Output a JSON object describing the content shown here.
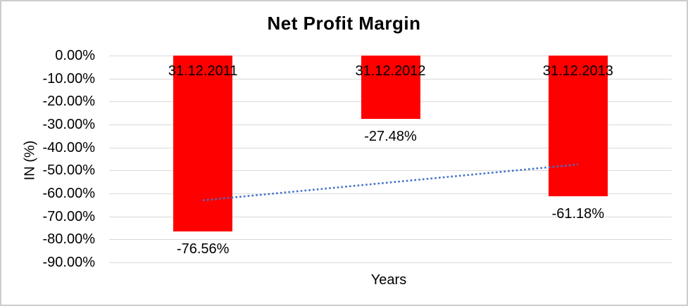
{
  "chart_data": {
    "type": "bar",
    "title": "Net Profit Margin",
    "xlabel": "Years",
    "ylabel": "IN (%)",
    "categories": [
      "31.12.2011",
      "31.12.2012",
      "31.12.2013"
    ],
    "series": [
      {
        "name": "Net Profit Margin",
        "values": [
          -76.56,
          -27.48,
          -61.18
        ]
      }
    ],
    "data_labels": [
      "-76.56%",
      "-27.48%",
      "-61.18%"
    ],
    "y_ticks": [
      {
        "value": 0,
        "label": "0.00%"
      },
      {
        "value": -10,
        "label": "-10.00%"
      },
      {
        "value": -20,
        "label": "-20.00%"
      },
      {
        "value": -30,
        "label": "-30.00%"
      },
      {
        "value": -40,
        "label": "-40.00%"
      },
      {
        "value": -50,
        "label": "-50.00%"
      },
      {
        "value": -60,
        "label": "-60.00%"
      },
      {
        "value": -70,
        "label": "-70.00%"
      },
      {
        "value": -80,
        "label": "-80.00%"
      },
      {
        "value": -90,
        "label": "-90.00%"
      }
    ],
    "ylim": [
      -90,
      0
    ],
    "grid": true,
    "legend": false,
    "trendline": {
      "type": "linear",
      "style": "dotted",
      "points": [
        {
          "category": "31.12.2011",
          "value": -63.0
        },
        {
          "category": "31.12.2013",
          "value": -47.4
        }
      ]
    },
    "colors": {
      "bar": "#FF0000",
      "trendline": "#4472C4",
      "gridline": "#D9D9D9",
      "text": "#000000",
      "frame_border": "#CDCDCD",
      "background": "#FFFFFF"
    }
  }
}
